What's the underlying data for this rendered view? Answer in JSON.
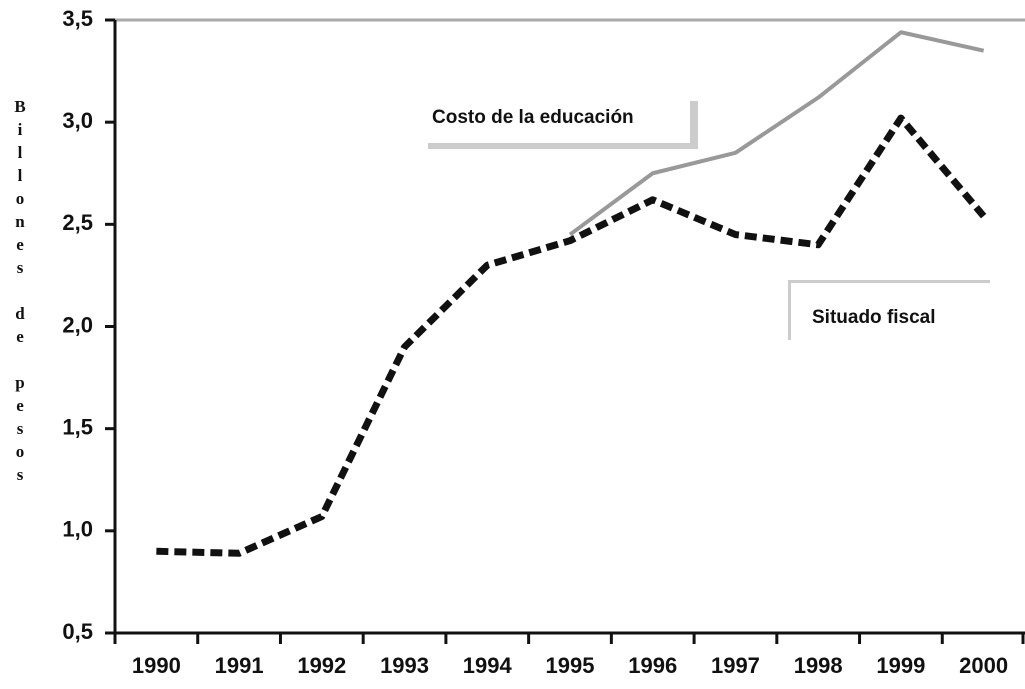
{
  "chart_data": {
    "type": "line",
    "y_label": "Billones de pesos",
    "annotations": [
      "Costo de la educación",
      "Situado fiscal"
    ],
    "categories": [
      "1990",
      "1991",
      "1992",
      "1993",
      "1994",
      "1995",
      "1996",
      "1997",
      "1998",
      "1999",
      "2000"
    ],
    "series": [
      {
        "name": "Costo de la educación",
        "color": "#999999",
        "style": "solid",
        "values": [
          null,
          null,
          null,
          null,
          null,
          2.45,
          2.75,
          2.85,
          3.12,
          3.44,
          3.35
        ]
      },
      {
        "name": "Situado fiscal",
        "color": "#111111",
        "style": "dashed",
        "values": [
          0.9,
          0.89,
          1.07,
          1.9,
          2.3,
          2.42,
          2.62,
          2.45,
          2.4,
          3.02,
          2.54
        ]
      }
    ],
    "ylim": [
      0.5,
      3.5
    ],
    "yticks": [
      {
        "value": 0.5,
        "label": "0,5"
      },
      {
        "value": 1.0,
        "label": "1,0"
      },
      {
        "value": 1.5,
        "label": "1,5"
      },
      {
        "value": 2.0,
        "label": "2,0"
      },
      {
        "value": 2.5,
        "label": "2,5"
      },
      {
        "value": 3.0,
        "label": "3,0"
      },
      {
        "value": 3.5,
        "label": "3,5"
      }
    ]
  }
}
